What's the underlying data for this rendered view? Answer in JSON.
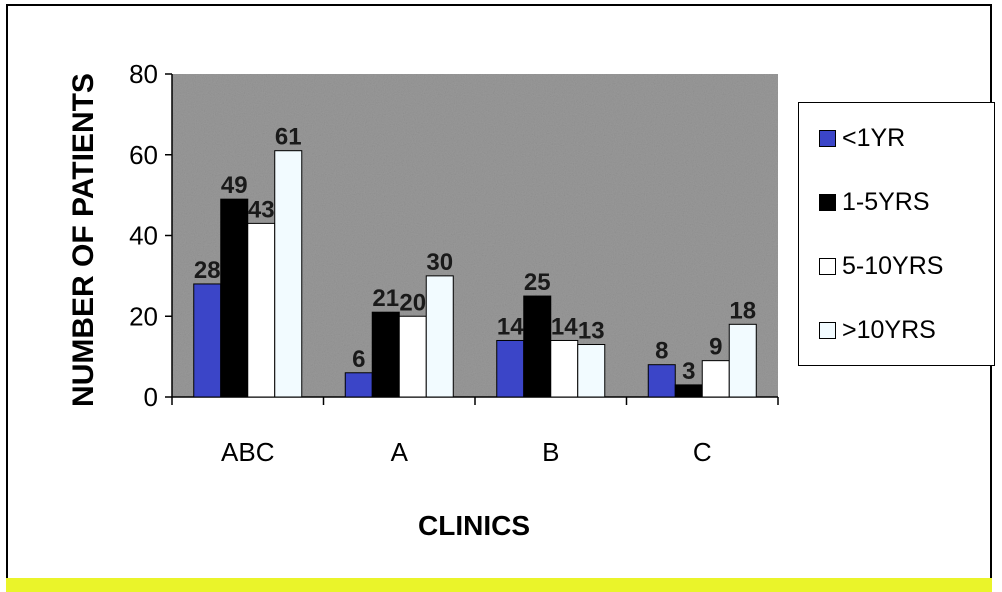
{
  "chart_data": {
    "type": "bar",
    "title": "",
    "xlabel": "CLINICS",
    "ylabel": "NUMBER OF PATIENTS",
    "ylim": [
      0,
      80
    ],
    "yticks": [
      "0",
      "20",
      "40",
      "60",
      "80"
    ],
    "categories": [
      "ABC",
      "A",
      "B",
      "C"
    ],
    "series": [
      {
        "name": "<1YR",
        "values": [
          28,
          6,
          14,
          8
        ],
        "color": "#3b45c8"
      },
      {
        "name": "1-5YRS",
        "values": [
          49,
          21,
          25,
          3
        ],
        "color": "#000000"
      },
      {
        "name": "5-10YRS",
        "values": [
          43,
          20,
          14,
          9
        ],
        "color": "#ffffff"
      },
      {
        "name": ">10YRS",
        "values": [
          61,
          30,
          13,
          18
        ],
        "color": "#f2fbff"
      }
    ],
    "data_labels": [
      [
        "28",
        "49",
        "43",
        "61"
      ],
      [
        "6",
        "21",
        "20",
        "30"
      ],
      [
        "14",
        "25",
        "14",
        "13"
      ],
      [
        "8",
        "3",
        "9",
        "18"
      ]
    ],
    "plot_background": "#9a9a9a",
    "legend_position": "right",
    "grid": false
  }
}
